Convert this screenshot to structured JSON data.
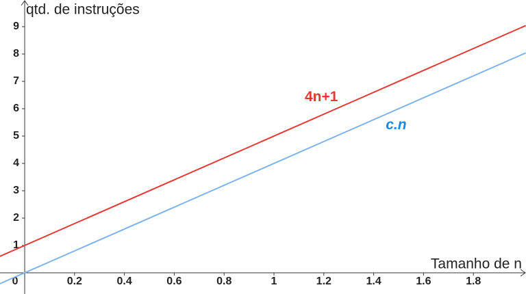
{
  "chart_data": {
    "type": "line",
    "y_label": "qtd. de instruções",
    "x_label": "Tamanho de n",
    "x": [
      -0.1,
      2.01
    ],
    "series": [
      {
        "name": "4n+1",
        "color": "#e53935",
        "label_color": "#e53935",
        "label_italic": false,
        "values": [
          0.6,
          9.04
        ]
      },
      {
        "name": "c.n",
        "color": "#7fb3ea",
        "label_color": "#1e88e5",
        "label_italic": true,
        "values": [
          -0.4,
          8.04
        ]
      }
    ],
    "xlim": [
      -0.099,
      2.011
    ],
    "ylim": [
      -0.775,
      9.975
    ],
    "xticks": [
      0,
      0.2,
      0.4,
      0.6,
      0.8,
      1,
      1.2,
      1.4,
      1.6,
      1.8
    ],
    "yticks": [
      1,
      2,
      3,
      4,
      5,
      6,
      7,
      8,
      9
    ],
    "grid": false
  }
}
